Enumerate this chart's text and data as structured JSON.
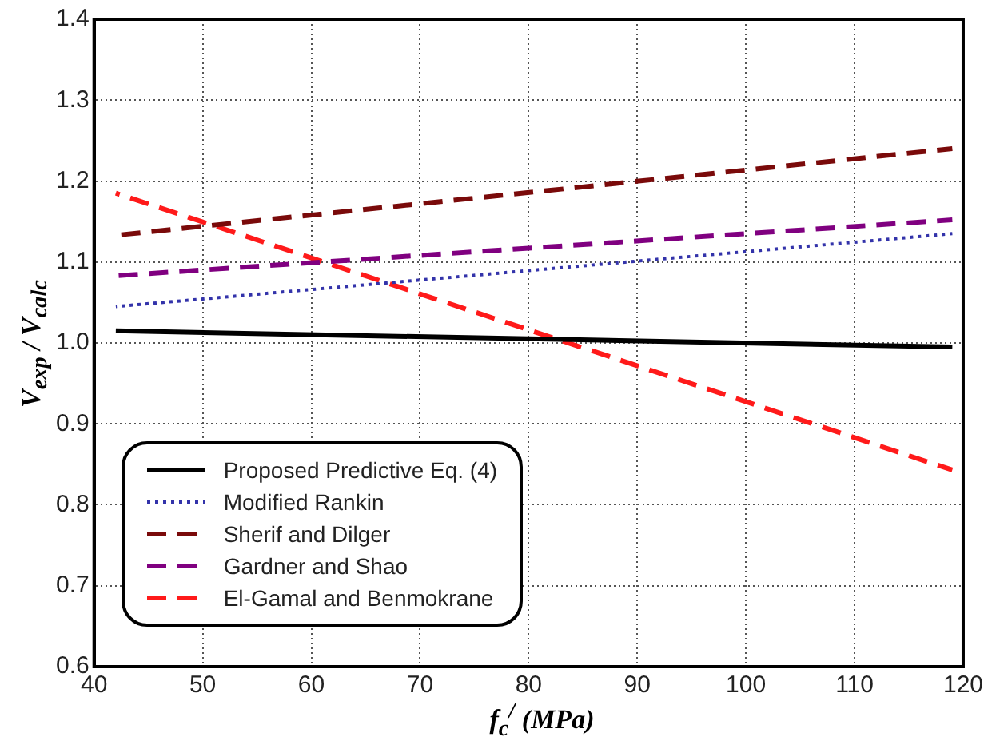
{
  "chart_data": {
    "type": "line",
    "xlabel": "f$_{c}$$^{/}$ (MPa)",
    "ylabel": "V$_{exp}$ / V$_{calc}$",
    "xlim": [
      40,
      120
    ],
    "xticks": [
      40,
      50,
      60,
      70,
      80,
      90,
      100,
      110,
      120
    ],
    "ylim": [
      0.6,
      1.4
    ],
    "yticks": [
      {
        "value": 0.6,
        "label": "0.6"
      },
      {
        "value": 0.7,
        "label": "0.7"
      },
      {
        "value": 0.8,
        "label": "0.8"
      },
      {
        "value": 0.9,
        "label": "0.9"
      },
      {
        "value": 1.0,
        "label": "1.0"
      },
      {
        "value": 1.1,
        "label": "1.1"
      },
      {
        "value": 1.2,
        "label": "1.2"
      },
      {
        "value": 1.3,
        "label": "1.3"
      },
      {
        "value": 1.4,
        "label": "1.4"
      }
    ],
    "grid": true,
    "legend": "bottom left",
    "marker": "none",
    "x": [
      42,
      119
    ],
    "series": [
      {
        "name": "Proposed Predictive Eq. (4)",
        "color": "#000000",
        "values": [
          1.015,
          0.995
        ],
        "line_style": "solid"
      },
      {
        "name": "Modified Rankin",
        "color": "#3333aa",
        "values": [
          1.045,
          1.135
        ],
        "line_style": "dotted"
      },
      {
        "name": "Sherif and Dilger",
        "color": "#7a0a0a",
        "values": [
          1.133,
          1.24
        ],
        "line_style": "dashed"
      },
      {
        "name": "Gardner and Shao",
        "color": "#800080",
        "values": [
          1.083,
          1.152
        ],
        "line_style": "dashed"
      },
      {
        "name": "El-Gamal and Benmokrane",
        "color": "#ff1a1a",
        "values": [
          1.185,
          0.843
        ],
        "line_style": "dashed"
      }
    ]
  }
}
